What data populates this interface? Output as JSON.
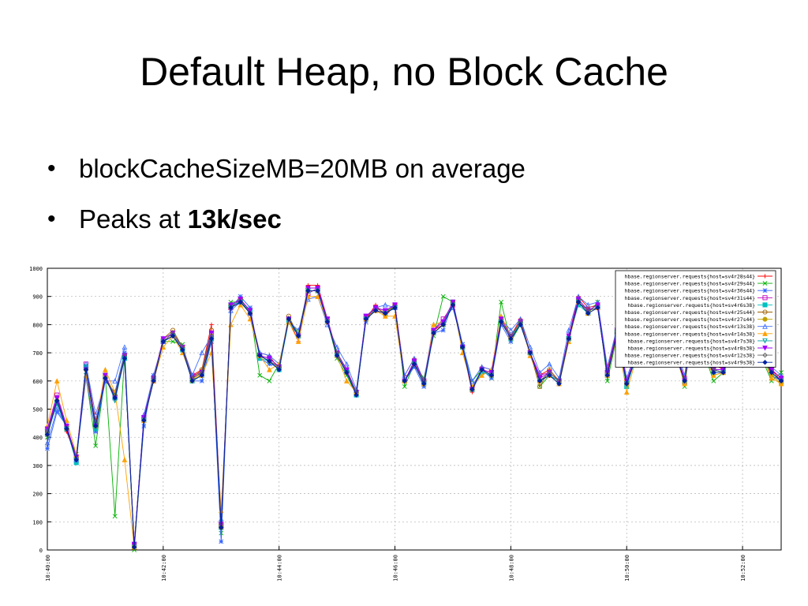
{
  "slide": {
    "title": "Default Heap, no Block Cache",
    "bullets": [
      {
        "text": "blockCacheSizeMB=20MB on average",
        "bold_suffix": ""
      },
      {
        "text": "Peaks at ",
        "bold_suffix": "13k/sec"
      }
    ]
  },
  "chart_data": {
    "type": "line",
    "title": "",
    "xlabel": "",
    "ylabel": "",
    "ylim": [
      0,
      1000
    ],
    "yticks": [
      0,
      100,
      200,
      300,
      400,
      500,
      600,
      700,
      800,
      900,
      1000
    ],
    "xlim": [
      "10:40:00",
      "10:52:40"
    ],
    "xticks": [
      "10:40:00",
      "10:42:00",
      "10:44:00",
      "10:46:00",
      "10:48:00",
      "10:50:00",
      "10:52:00"
    ],
    "grid": true,
    "legend_position": "top-right",
    "x": [
      "10:40:00",
      "10:40:10",
      "10:40:20",
      "10:40:30",
      "10:40:40",
      "10:40:50",
      "10:41:00",
      "10:41:10",
      "10:41:20",
      "10:41:30",
      "10:41:40",
      "10:41:50",
      "10:42:00",
      "10:42:10",
      "10:42:20",
      "10:42:30",
      "10:42:40",
      "10:42:50",
      "10:43:00",
      "10:43:10",
      "10:43:20",
      "10:43:30",
      "10:43:40",
      "10:43:50",
      "10:44:00",
      "10:44:10",
      "10:44:20",
      "10:44:30",
      "10:44:40",
      "10:44:50",
      "10:45:00",
      "10:45:10",
      "10:45:20",
      "10:45:30",
      "10:45:40",
      "10:45:50",
      "10:46:00",
      "10:46:10",
      "10:46:20",
      "10:46:30",
      "10:46:40",
      "10:46:50",
      "10:47:00",
      "10:47:10",
      "10:47:20",
      "10:47:30",
      "10:47:40",
      "10:47:50",
      "10:48:00",
      "10:48:10",
      "10:48:20",
      "10:48:30",
      "10:48:40",
      "10:48:50",
      "10:49:00",
      "10:49:10",
      "10:49:20",
      "10:49:30",
      "10:49:40",
      "10:49:50",
      "10:50:00",
      "10:50:10",
      "10:50:20",
      "10:50:30",
      "10:50:40",
      "10:50:50",
      "10:51:00",
      "10:51:10",
      "10:51:20",
      "10:51:30",
      "10:51:40",
      "10:51:50",
      "10:52:00",
      "10:52:10",
      "10:52:20",
      "10:52:30",
      "10:52:40"
    ],
    "series": [
      {
        "name": "hbase.regionserver.requests{host=sv4r28s44}",
        "color": "#ff0000",
        "marker": "plus",
        "values": [
          420,
          540,
          420,
          330,
          640,
          460,
          600,
          560,
          680,
          20,
          460,
          610,
          740,
          770,
          720,
          620,
          640,
          800,
          100,
          870,
          880,
          840,
          700,
          690,
          640,
          820,
          740,
          940,
          940,
          820,
          700,
          640,
          560,
          820,
          870,
          830,
          870,
          620,
          680,
          600,
          780,
          800,
          880,
          720,
          560,
          650,
          640,
          820,
          760,
          820,
          700,
          620,
          640,
          600,
          760,
          900,
          860,
          870,
          640,
          780,
          600,
          700,
          860,
          820,
          690,
          720,
          600,
          830,
          700,
          660,
          640,
          780,
          720,
          720,
          700,
          640,
          600
        ]
      },
      {
        "name": "hbase.regionserver.requests{host=sv4r29s44}",
        "color": "#00b000",
        "marker": "x",
        "values": [
          400,
          540,
          430,
          340,
          620,
          370,
          620,
          120,
          690,
          0,
          460,
          600,
          740,
          740,
          730,
          600,
          620,
          740,
          60,
          880,
          880,
          850,
          620,
          600,
          660,
          820,
          770,
          930,
          930,
          810,
          680,
          620,
          550,
          830,
          860,
          850,
          860,
          580,
          660,
          610,
          760,
          900,
          880,
          730,
          600,
          640,
          610,
          880,
          740,
          800,
          700,
          580,
          620,
          590,
          740,
          880,
          840,
          880,
          600,
          760,
          580,
          690,
          860,
          840,
          680,
          720,
          580,
          820,
          700,
          600,
          630,
          760,
          700,
          700,
          680,
          600,
          630
        ]
      },
      {
        "name": "hbase.regionserver.requests{host=sv4r30s44}",
        "color": "#3060ff",
        "marker": "star",
        "values": [
          360,
          490,
          440,
          320,
          610,
          420,
          600,
          560,
          700,
          10,
          440,
          620,
          740,
          760,
          710,
          600,
          600,
          740,
          30,
          860,
          900,
          860,
          680,
          660,
          650,
          820,
          760,
          920,
          920,
          810,
          700,
          640,
          560,
          810,
          860,
          840,
          870,
          600,
          650,
          580,
          770,
          780,
          880,
          730,
          580,
          640,
          610,
          800,
          740,
          810,
          700,
          600,
          620,
          590,
          760,
          880,
          840,
          860,
          620,
          770,
          590,
          680,
          850,
          820,
          680,
          700,
          600,
          810,
          700,
          640,
          640,
          760,
          710,
          710,
          690,
          620,
          600
        ]
      },
      {
        "name": "hbase.regionserver.requests{host=sv4r31s44}",
        "color": "#c000c0",
        "marker": "square-open",
        "values": [
          430,
          550,
          440,
          330,
          660,
          450,
          620,
          540,
          690,
          20,
          470,
          600,
          740,
          760,
          720,
          620,
          630,
          770,
          90,
          860,
          890,
          840,
          690,
          680,
          650,
          820,
          760,
          910,
          930,
          820,
          700,
          640,
          560,
          830,
          860,
          850,
          870,
          600,
          670,
          600,
          780,
          820,
          870,
          720,
          570,
          640,
          630,
          820,
          760,
          810,
          700,
          620,
          630,
          600,
          750,
          880,
          850,
          860,
          630,
          770,
          600,
          690,
          860,
          830,
          690,
          710,
          610,
          820,
          700,
          640,
          640,
          770,
          710,
          720,
          690,
          640,
          610
        ]
      },
      {
        "name": "hbase.regionserver.requests{host=sv4r6s38}",
        "color": "#00c0c0",
        "marker": "square-filled",
        "values": [
          410,
          520,
          430,
          310,
          650,
          430,
          610,
          540,
          680,
          10,
          460,
          610,
          740,
          760,
          710,
          600,
          620,
          750,
          80,
          870,
          880,
          850,
          680,
          670,
          640,
          810,
          760,
          920,
          920,
          810,
          690,
          630,
          550,
          820,
          850,
          840,
          860,
          600,
          660,
          590,
          770,
          800,
          880,
          720,
          570,
          630,
          620,
          810,
          750,
          800,
          700,
          600,
          620,
          600,
          750,
          870,
          840,
          860,
          620,
          770,
          580,
          690,
          850,
          820,
          680,
          700,
          600,
          810,
          690,
          630,
          630,
          760,
          700,
          710,
          690,
          630,
          600
        ]
      },
      {
        "name": "hbase.regionserver.requests{host=sv4r25s44}",
        "color": "#a06000",
        "marker": "circle-open",
        "values": [
          420,
          530,
          430,
          330,
          640,
          450,
          610,
          550,
          690,
          10,
          470,
          610,
          750,
          780,
          720,
          610,
          640,
          780,
          80,
          870,
          890,
          840,
          690,
          680,
          650,
          830,
          760,
          930,
          930,
          820,
          700,
          640,
          560,
          820,
          860,
          840,
          870,
          600,
          670,
          600,
          780,
          810,
          880,
          720,
          570,
          640,
          630,
          820,
          760,
          810,
          700,
          580,
          640,
          600,
          750,
          890,
          850,
          870,
          630,
          780,
          590,
          700,
          860,
          830,
          680,
          710,
          590,
          820,
          700,
          640,
          640,
          780,
          710,
          720,
          690,
          630,
          600
        ]
      },
      {
        "name": "hbase.regionserver.requests{host=sv4r27s44}",
        "color": "#c0a000",
        "marker": "circle-filled",
        "values": [
          410,
          530,
          430,
          330,
          640,
          440,
          620,
          550,
          690,
          10,
          460,
          600,
          740,
          760,
          720,
          600,
          630,
          760,
          90,
          860,
          880,
          840,
          690,
          670,
          650,
          820,
          760,
          920,
          920,
          820,
          700,
          630,
          560,
          820,
          850,
          840,
          860,
          600,
          660,
          600,
          770,
          800,
          870,
          720,
          570,
          640,
          620,
          810,
          750,
          810,
          700,
          600,
          630,
          600,
          750,
          880,
          850,
          860,
          620,
          770,
          590,
          690,
          850,
          830,
          680,
          700,
          600,
          810,
          700,
          640,
          630,
          770,
          700,
          710,
          690,
          620,
          590
        ]
      },
      {
        "name": "hbase.regionserver.requests{host=sv4r13s38}",
        "color": "#4070ff",
        "marker": "triangle-open",
        "values": [
          380,
          500,
          440,
          320,
          660,
          480,
          600,
          600,
          720,
          10,
          480,
          620,
          740,
          760,
          720,
          620,
          700,
          760,
          110,
          850,
          880,
          840,
          700,
          690,
          660,
          810,
          780,
          890,
          900,
          800,
          720,
          660,
          570,
          830,
          860,
          870,
          860,
          620,
          680,
          600,
          800,
          810,
          860,
          730,
          600,
          650,
          640,
          820,
          780,
          820,
          720,
          630,
          660,
          610,
          780,
          900,
          870,
          880,
          650,
          790,
          610,
          710,
          870,
          850,
          690,
          730,
          620,
          850,
          720,
          660,
          650,
          800,
          730,
          730,
          700,
          650,
          620
        ]
      },
      {
        "name": "hbase.regionserver.requests{host=sv4r14s38}",
        "color": "#ffa000",
        "marker": "triangle-filled",
        "values": [
          440,
          600,
          460,
          340,
          620,
          440,
          640,
          560,
          320,
          10,
          460,
          600,
          720,
          760,
          700,
          610,
          620,
          700,
          140,
          800,
          870,
          820,
          690,
          640,
          660,
          810,
          740,
          900,
          900,
          810,
          690,
          600,
          560,
          820,
          850,
          830,
          830,
          600,
          660,
          590,
          800,
          810,
          880,
          700,
          580,
          620,
          640,
          830,
          760,
          810,
          690,
          600,
          620,
          590,
          740,
          880,
          840,
          860,
          620,
          760,
          560,
          680,
          840,
          820,
          680,
          700,
          590,
          800,
          690,
          620,
          630,
          770,
          700,
          700,
          690,
          610,
          590
        ]
      },
      {
        "name": "hbase.regionserver.requests{host=sv4r7s38}",
        "color": "#00a0a0",
        "marker": "triangle-down-open",
        "values": [
          420,
          520,
          430,
          320,
          650,
          430,
          620,
          530,
          680,
          20,
          460,
          600,
          740,
          760,
          710,
          600,
          620,
          750,
          90,
          860,
          880,
          850,
          690,
          670,
          640,
          820,
          760,
          920,
          920,
          810,
          690,
          630,
          560,
          820,
          850,
          840,
          860,
          600,
          660,
          590,
          770,
          800,
          870,
          720,
          570,
          640,
          620,
          810,
          760,
          800,
          700,
          600,
          620,
          600,
          750,
          880,
          850,
          860,
          630,
          770,
          590,
          690,
          850,
          820,
          690,
          700,
          600,
          810,
          690,
          640,
          630,
          760,
          700,
          710,
          690,
          630,
          600
        ]
      },
      {
        "name": "hbase.regionserver.requests{host=sv4r8s38}",
        "color": "#a000ff",
        "marker": "triangle-down-filled",
        "values": [
          430,
          540,
          440,
          330,
          640,
          440,
          620,
          540,
          690,
          20,
          470,
          610,
          750,
          770,
          720,
          610,
          630,
          770,
          90,
          870,
          890,
          850,
          690,
          680,
          650,
          820,
          760,
          930,
          930,
          820,
          700,
          640,
          560,
          830,
          860,
          850,
          870,
          600,
          670,
          600,
          780,
          810,
          880,
          720,
          570,
          640,
          630,
          820,
          760,
          810,
          700,
          610,
          630,
          600,
          760,
          890,
          850,
          870,
          630,
          780,
          600,
          700,
          860,
          830,
          690,
          710,
          600,
          820,
          700,
          640,
          640,
          770,
          710,
          720,
          690,
          640,
          610
        ]
      },
      {
        "name": "hbase.regionserver.requests{host=sv4r12s38}",
        "color": "#606060",
        "marker": "diamond-open",
        "values": [
          420,
          530,
          430,
          320,
          640,
          440,
          610,
          550,
          690,
          10,
          460,
          610,
          740,
          770,
          720,
          610,
          630,
          760,
          90,
          860,
          880,
          840,
          690,
          670,
          650,
          820,
          760,
          920,
          920,
          810,
          700,
          630,
          560,
          820,
          850,
          840,
          860,
          600,
          660,
          600,
          770,
          800,
          870,
          720,
          570,
          640,
          620,
          810,
          760,
          810,
          700,
          600,
          630,
          600,
          750,
          880,
          850,
          860,
          620,
          770,
          590,
          690,
          850,
          830,
          680,
          700,
          600,
          810,
          700,
          640,
          630,
          770,
          700,
          710,
          690,
          630,
          600
        ]
      },
      {
        "name": "hbase.regionserver.requests{host=sv4r9s38}",
        "color": "#0020a0",
        "marker": "diamond-filled",
        "values": [
          410,
          530,
          430,
          320,
          640,
          440,
          610,
          540,
          680,
          10,
          460,
          600,
          740,
          760,
          710,
          600,
          620,
          750,
          80,
          860,
          880,
          840,
          690,
          670,
          640,
          820,
          760,
          920,
          920,
          810,
          690,
          630,
          550,
          820,
          850,
          840,
          860,
          600,
          660,
          590,
          770,
          800,
          870,
          720,
          570,
          640,
          620,
          810,
          750,
          800,
          700,
          600,
          620,
          590,
          750,
          880,
          840,
          860,
          620,
          770,
          590,
          690,
          850,
          820,
          680,
          700,
          600,
          810,
          690,
          630,
          630,
          760,
          700,
          710,
          690,
          630,
          600
        ]
      }
    ]
  }
}
